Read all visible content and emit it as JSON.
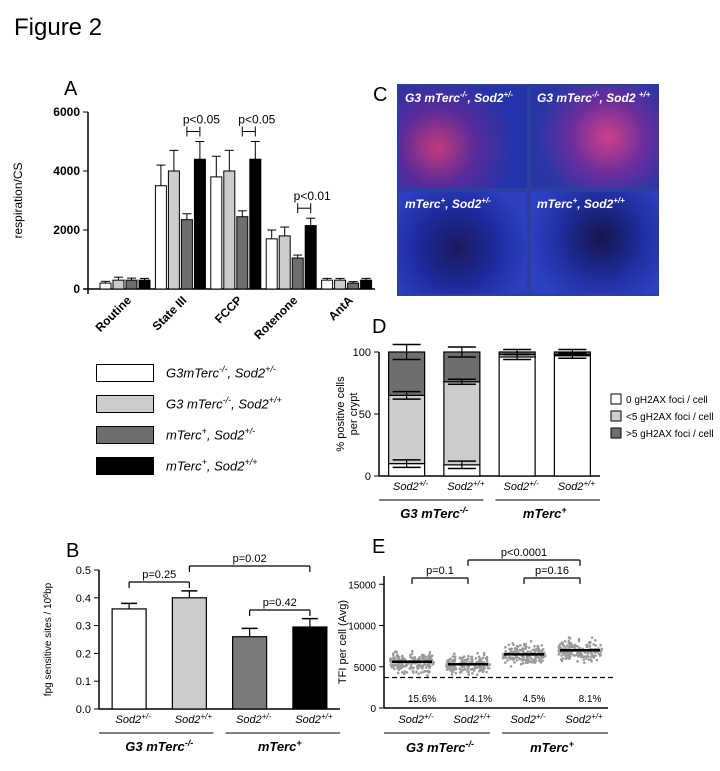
{
  "figure_title": "Figure 2",
  "genotypes": {
    "sod2_het": "Sod2",
    "sod2_het_sup": "+/-",
    "sod2_wt_sup": "+/+",
    "g3_group": "G3 mTerc",
    "g3_sup": "-/-",
    "mterc_group": "mTerc",
    "mterc_sup": "+"
  },
  "legend_a": [
    {
      "pre": "G3mTerc",
      "pre_sup": "-/-",
      "post": ", Sod2",
      "post_sup": "+/-",
      "color": "#ffffff"
    },
    {
      "pre": "G3 mTerc",
      "pre_sup": "-/-",
      "post": ", Sod2",
      "post_sup": "+/+",
      "color": "#cccccc"
    },
    {
      "pre": "mTerc",
      "pre_sup": "+",
      "post": ", Sod2",
      "post_sup": "+/-",
      "color": "#6e6e6e"
    },
    {
      "pre": "mTerc",
      "pre_sup": "+",
      "post": ", Sod2",
      "post_sup": "+/+",
      "color": "#000000"
    }
  ],
  "panel_c": {
    "letter": "C",
    "images": [
      {
        "pre": "G3 mTerc",
        "pre_sup": "-/-",
        "post": ", Sod2",
        "post_sup": "+/-"
      },
      {
        "pre": "G3 mTerc",
        "pre_sup": "-/-",
        "post": ", Sod2 ",
        "post_sup": "+/+"
      },
      {
        "pre": "mTerc",
        "pre_sup": "+",
        "post": ", Sod2",
        "post_sup": "+/-"
      },
      {
        "pre": "mTerc",
        "pre_sup": "+",
        "post": ", Sod2",
        "post_sup": "+/+"
      }
    ]
  },
  "chart_data": [
    {
      "panel": "A",
      "type": "bar",
      "ylabel": "respiration/CS",
      "ylim": [
        0,
        6000
      ],
      "yticks": [
        0,
        2000,
        4000,
        6000
      ],
      "categories": [
        "Routine",
        "State III",
        "FCCP",
        "Rotenone",
        "AntA"
      ],
      "series": [
        {
          "values": [
            200,
            3500,
            3800,
            1700,
            300
          ],
          "errors": [
            60,
            700,
            700,
            300,
            60
          ]
        },
        {
          "values": [
            300,
            4000,
            4000,
            1800,
            300
          ],
          "errors": [
            100,
            700,
            700,
            300,
            60
          ]
        },
        {
          "values": [
            300,
            2350,
            2450,
            1050,
            200
          ],
          "errors": [
            70,
            200,
            200,
            100,
            50
          ]
        },
        {
          "values": [
            300,
            4400,
            4400,
            2150,
            300
          ],
          "errors": [
            60,
            600,
            600,
            250,
            60
          ]
        }
      ],
      "annotations": [
        "p<0.05",
        "p<0.05",
        "p<0.01"
      ]
    },
    {
      "panel": "B",
      "type": "bar",
      "ylabel": "fpg sensitive sites / 10",
      "ylabel_sup": "6",
      "ylabel_end": "bp",
      "ylim": [
        0,
        0.5
      ],
      "yticks": [
        "0.0",
        "0.1",
        "0.2",
        "0.3",
        "0.4",
        "0.5"
      ],
      "values": [
        0.36,
        0.4,
        0.26,
        0.295
      ],
      "errors": [
        0.02,
        0.025,
        0.03,
        0.03
      ],
      "colors": [
        "#ffffff",
        "#cccccc",
        "#7a7a7a",
        "#000000"
      ],
      "annotations": [
        "p=0.25",
        "p=0.02",
        "p=0.42"
      ]
    },
    {
      "panel": "D",
      "type": "bar",
      "ylabel": "% positive cells\nper crypt",
      "ylim": [
        0,
        100
      ],
      "yticks": [
        0,
        50,
        100
      ],
      "stacks": [
        {
          "name": "0 gH2AX foci / cell",
          "color": "#ffffff",
          "values": [
            10,
            9,
            96,
            97
          ]
        },
        {
          "name": "<5 gH2AX foci / cell",
          "color": "#cccccc",
          "values": [
            55,
            67,
            2,
            1
          ]
        },
        {
          "name": ">5 gH2AX foci / cell",
          "color": "#6e6e6e",
          "values": [
            35,
            24,
            2,
            2
          ]
        }
      ],
      "errors": [
        {
          "low": 3,
          "mid": 3,
          "top": 6
        },
        {
          "low": 3,
          "mid": 2,
          "top": 4
        },
        {
          "low": 2,
          "mid": 0,
          "top": 2
        },
        {
          "low": 2,
          "mid": 0,
          "top": 2
        }
      ]
    },
    {
      "panel": "E",
      "type": "scatter",
      "ylabel": "TFI per cell (Avg)",
      "ylim": [
        0,
        16000
      ],
      "yticks": [
        0,
        5000,
        10000,
        15000
      ],
      "means": [
        5600,
        5300,
        6500,
        7000
      ],
      "threshold": 3700,
      "percent_labels": [
        "15.6%",
        "14.1%",
        "4.5%",
        "8.1%"
      ],
      "annotations": [
        "p=0.1",
        "p<0.0001",
        "p=0.16"
      ]
    }
  ]
}
